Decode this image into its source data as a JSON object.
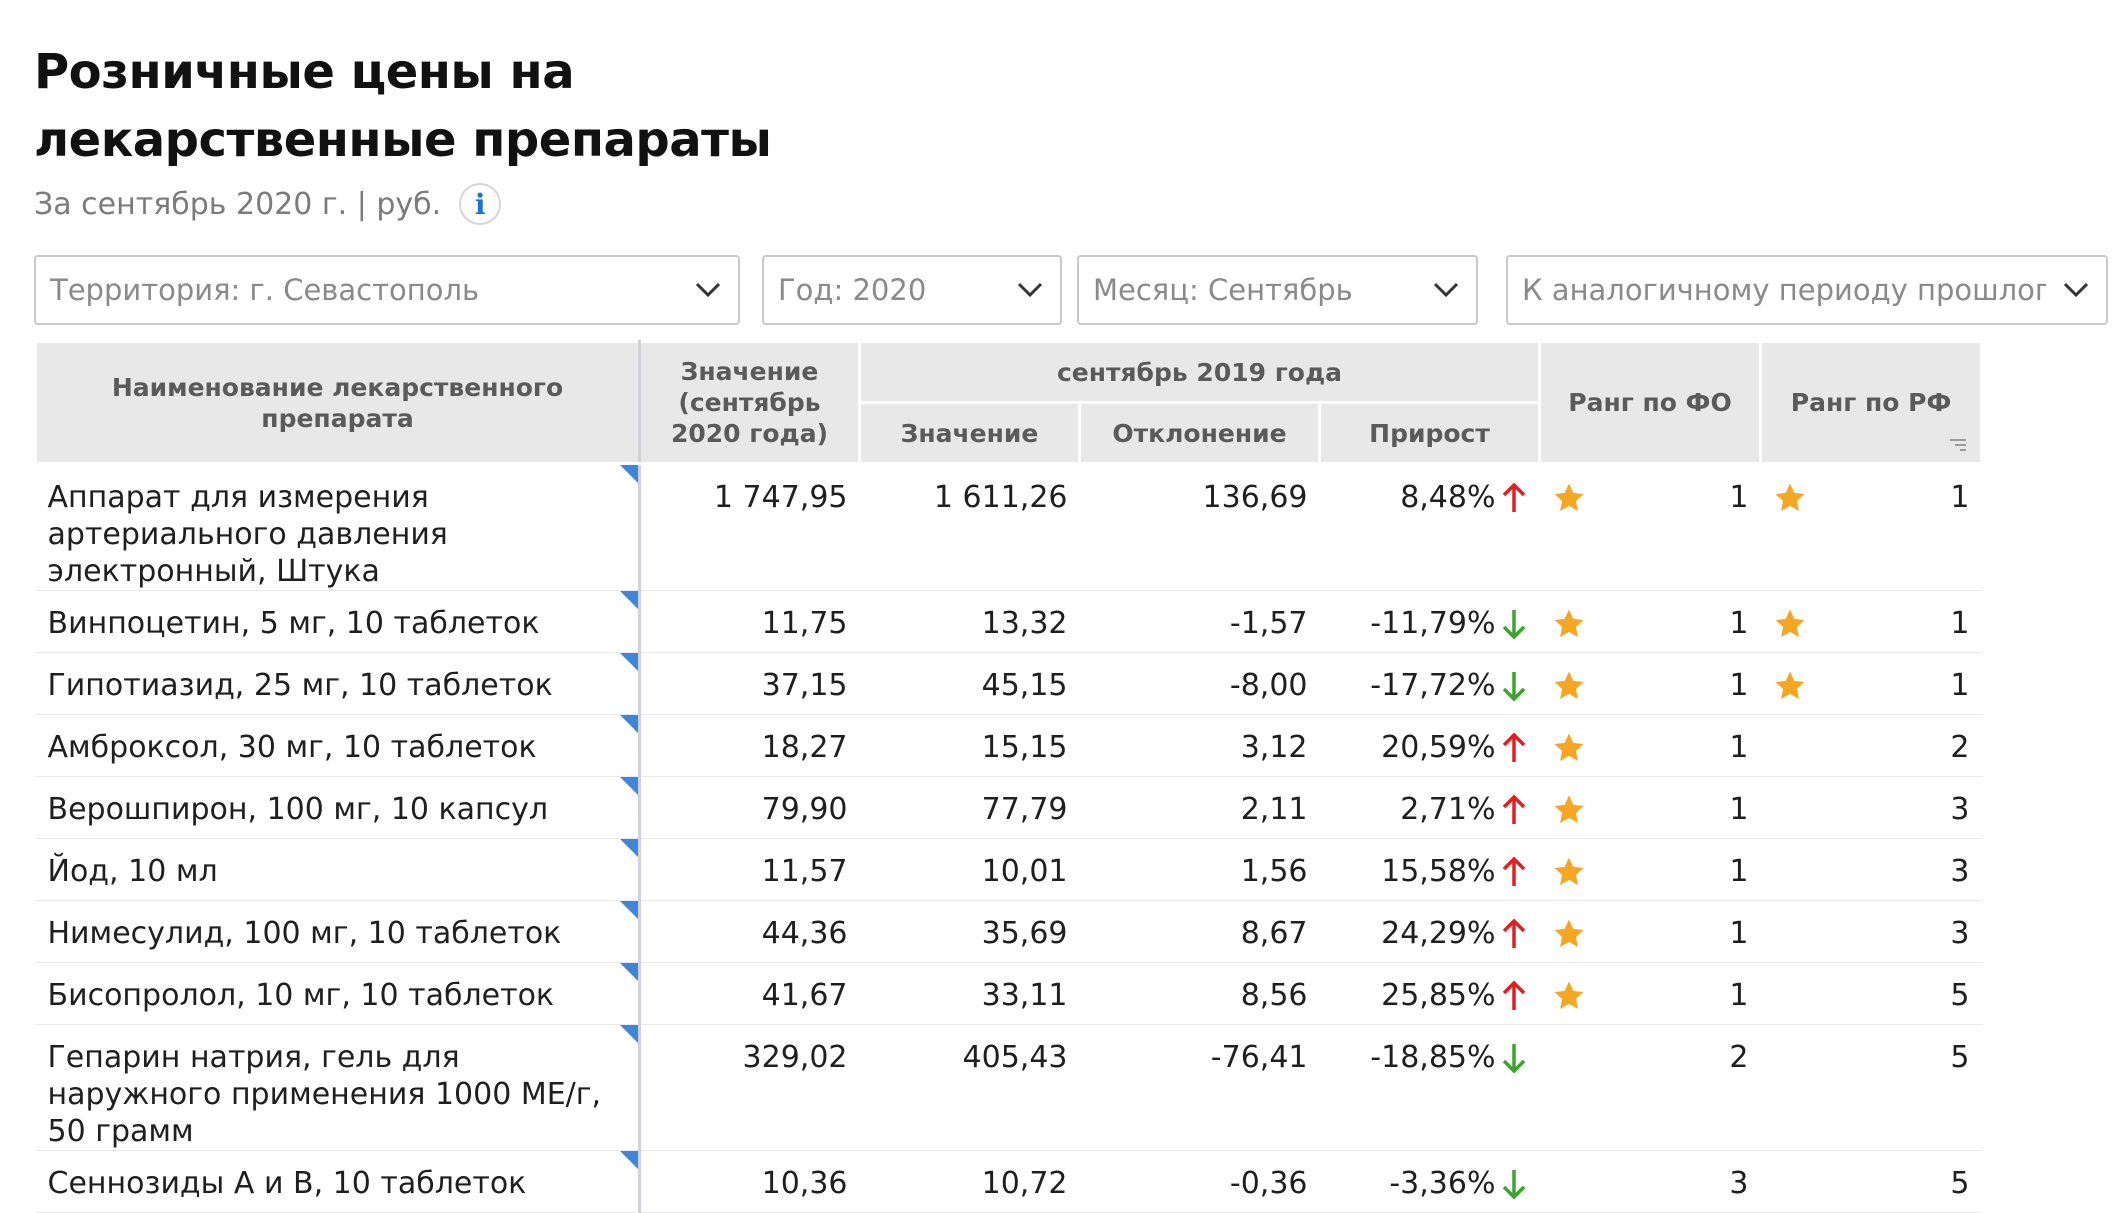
{
  "page": {
    "title": "Розничные цены на лекарственные препараты",
    "subtitle": "За сентябрь 2020 г. | руб.",
    "info_icon_glyph": "i"
  },
  "filters": {
    "territory": "Территория: г. Севастополь",
    "year": "Год: 2020",
    "month": "Месяц: Сентябрь",
    "comparison": "К аналогичному периоду прошлого г"
  },
  "table": {
    "headers": {
      "name": "Наименование лекарственного препарата",
      "value_2020": "Значение (сентябрь 2020 года)",
      "group_2019": "сентябрь 2019 года",
      "value_2019": "Значение",
      "deviation": "Отклонение",
      "growth": "Прирост",
      "rank_fo": "Ранг по ФО",
      "rank_rf": "Ранг по РФ"
    },
    "rows": [
      {
        "name": "Аппарат для измерения артериального давления электронный, Штука",
        "value_2020": "1 747,95",
        "value_2019": "1 611,26",
        "deviation": "136,69",
        "growth": "8,48%",
        "trend": "up",
        "rank_fo": "1",
        "star_fo": true,
        "rank_rf": "1",
        "star_rf": true
      },
      {
        "name": "Винпоцетин, 5 мг, 10 таблеток",
        "value_2020": "11,75",
        "value_2019": "13,32",
        "deviation": "-1,57",
        "growth": "-11,79%",
        "trend": "down",
        "rank_fo": "1",
        "star_fo": true,
        "rank_rf": "1",
        "star_rf": true
      },
      {
        "name": "Гипотиазид, 25 мг, 10 таблеток",
        "value_2020": "37,15",
        "value_2019": "45,15",
        "deviation": "-8,00",
        "growth": "-17,72%",
        "trend": "down",
        "rank_fo": "1",
        "star_fo": true,
        "rank_rf": "1",
        "star_rf": true
      },
      {
        "name": "Амброксол, 30 мг, 10 таблеток",
        "value_2020": "18,27",
        "value_2019": "15,15",
        "deviation": "3,12",
        "growth": "20,59%",
        "trend": "up",
        "rank_fo": "1",
        "star_fo": true,
        "rank_rf": "2",
        "star_rf": false
      },
      {
        "name": "Верошпирон, 100 мг, 10 капсул",
        "value_2020": "79,90",
        "value_2019": "77,79",
        "deviation": "2,11",
        "growth": "2,71%",
        "trend": "up",
        "rank_fo": "1",
        "star_fo": true,
        "rank_rf": "3",
        "star_rf": false
      },
      {
        "name": "Йод, 10 мл",
        "value_2020": "11,57",
        "value_2019": "10,01",
        "deviation": "1,56",
        "growth": "15,58%",
        "trend": "up",
        "rank_fo": "1",
        "star_fo": true,
        "rank_rf": "3",
        "star_rf": false
      },
      {
        "name": "Нимесулид, 100 мг, 10 таблеток",
        "value_2020": "44,36",
        "value_2019": "35,69",
        "deviation": "8,67",
        "growth": "24,29%",
        "trend": "up",
        "rank_fo": "1",
        "star_fo": true,
        "rank_rf": "3",
        "star_rf": false
      },
      {
        "name": "Бисопролол, 10 мг, 10 таблеток",
        "value_2020": "41,67",
        "value_2019": "33,11",
        "deviation": "8,56",
        "growth": "25,85%",
        "trend": "up",
        "rank_fo": "1",
        "star_fo": true,
        "rank_rf": "5",
        "star_rf": false
      },
      {
        "name": "Гепарин натрия, гель для наружного применения 1000 МЕ/г, 50 грамм",
        "value_2020": "329,02",
        "value_2019": "405,43",
        "deviation": "-76,41",
        "growth": "-18,85%",
        "trend": "down",
        "rank_fo": "2",
        "star_fo": false,
        "rank_rf": "5",
        "star_rf": false
      },
      {
        "name": "Сеннозиды А и В, 10 таблеток",
        "value_2020": "10,36",
        "value_2019": "10,72",
        "deviation": "-0,36",
        "growth": "-3,36%",
        "trend": "down",
        "rank_fo": "3",
        "star_fo": false,
        "rank_rf": "5",
        "star_rf": false
      }
    ]
  },
  "colors": {
    "star": "#f5a623",
    "arrow_up": "#e02020",
    "arrow_down": "#3aa52a",
    "header_bg": "#e8e8e8",
    "row_marker": "#3f86d8"
  },
  "icons": {
    "filter_dropdown": "chevron-down-icon",
    "info": "info-icon",
    "rank": "star-icon",
    "trend_up": "arrow-up-icon",
    "trend_down": "arrow-down-icon",
    "sort": "sort-icon"
  }
}
